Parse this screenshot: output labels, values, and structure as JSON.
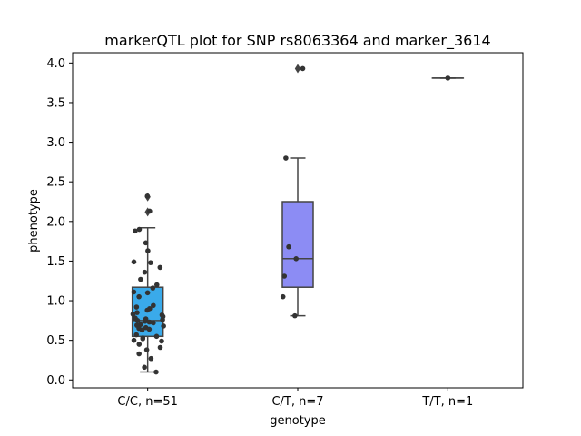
{
  "chart_data": {
    "type": "box",
    "title": "markerQTL plot for SNP rs8063364 and marker_3614",
    "xlabel": "genotype",
    "ylabel": "phenotype",
    "ylim": [
      -0.1,
      4.13
    ],
    "yticks": [
      "0.0",
      "0.5",
      "1.0",
      "1.5",
      "2.0",
      "2.5",
      "3.0",
      "3.5",
      "4.0"
    ],
    "categories": [
      "C/C, n=51",
      "C/T, n=7",
      "T/T, n=1"
    ],
    "colors": [
      "#3aaaea",
      "#8c8cf4",
      "#c77fff"
    ],
    "grid": false,
    "legend": "none",
    "boxes": [
      {
        "category": "C/C, n=51",
        "whisker_low": 0.1,
        "q1": 0.55,
        "median": 0.75,
        "q3": 1.17,
        "whisker_high": 1.92,
        "outliers": [
          2.12,
          2.31
        ]
      },
      {
        "category": "C/T, n=7",
        "whisker_low": 0.81,
        "q1": 1.17,
        "median": 1.53,
        "q3": 2.25,
        "whisker_high": 2.8,
        "outliers": [
          3.93
        ]
      },
      {
        "category": "T/T, n=1",
        "whisker_low": 3.81,
        "q1": 3.81,
        "median": 3.81,
        "q3": 3.81,
        "whisker_high": 3.81,
        "outliers": []
      }
    ],
    "points": [
      {
        "category": "C/C, n=51",
        "values": [
          2.32,
          2.13,
          1.88,
          1.9,
          1.73,
          1.63,
          1.49,
          1.42,
          1.48,
          1.36,
          1.27,
          1.2,
          1.16,
          1.11,
          1.1,
          1.05,
          0.94,
          0.92,
          0.9,
          0.88,
          0.85,
          0.83,
          0.82,
          0.8,
          0.78,
          0.77,
          0.76,
          0.75,
          0.74,
          0.73,
          0.72,
          0.7,
          0.69,
          0.68,
          0.66,
          0.65,
          0.64,
          0.63,
          0.57,
          0.55,
          0.53,
          0.52,
          0.5,
          0.49,
          0.45,
          0.41,
          0.38,
          0.33,
          0.27,
          0.16,
          0.1
        ]
      },
      {
        "category": "C/T, n=7",
        "values": [
          3.93,
          2.8,
          1.68,
          1.53,
          1.31,
          1.05,
          0.81
        ]
      },
      {
        "category": "T/T, n=1",
        "values": [
          3.81
        ]
      }
    ]
  }
}
